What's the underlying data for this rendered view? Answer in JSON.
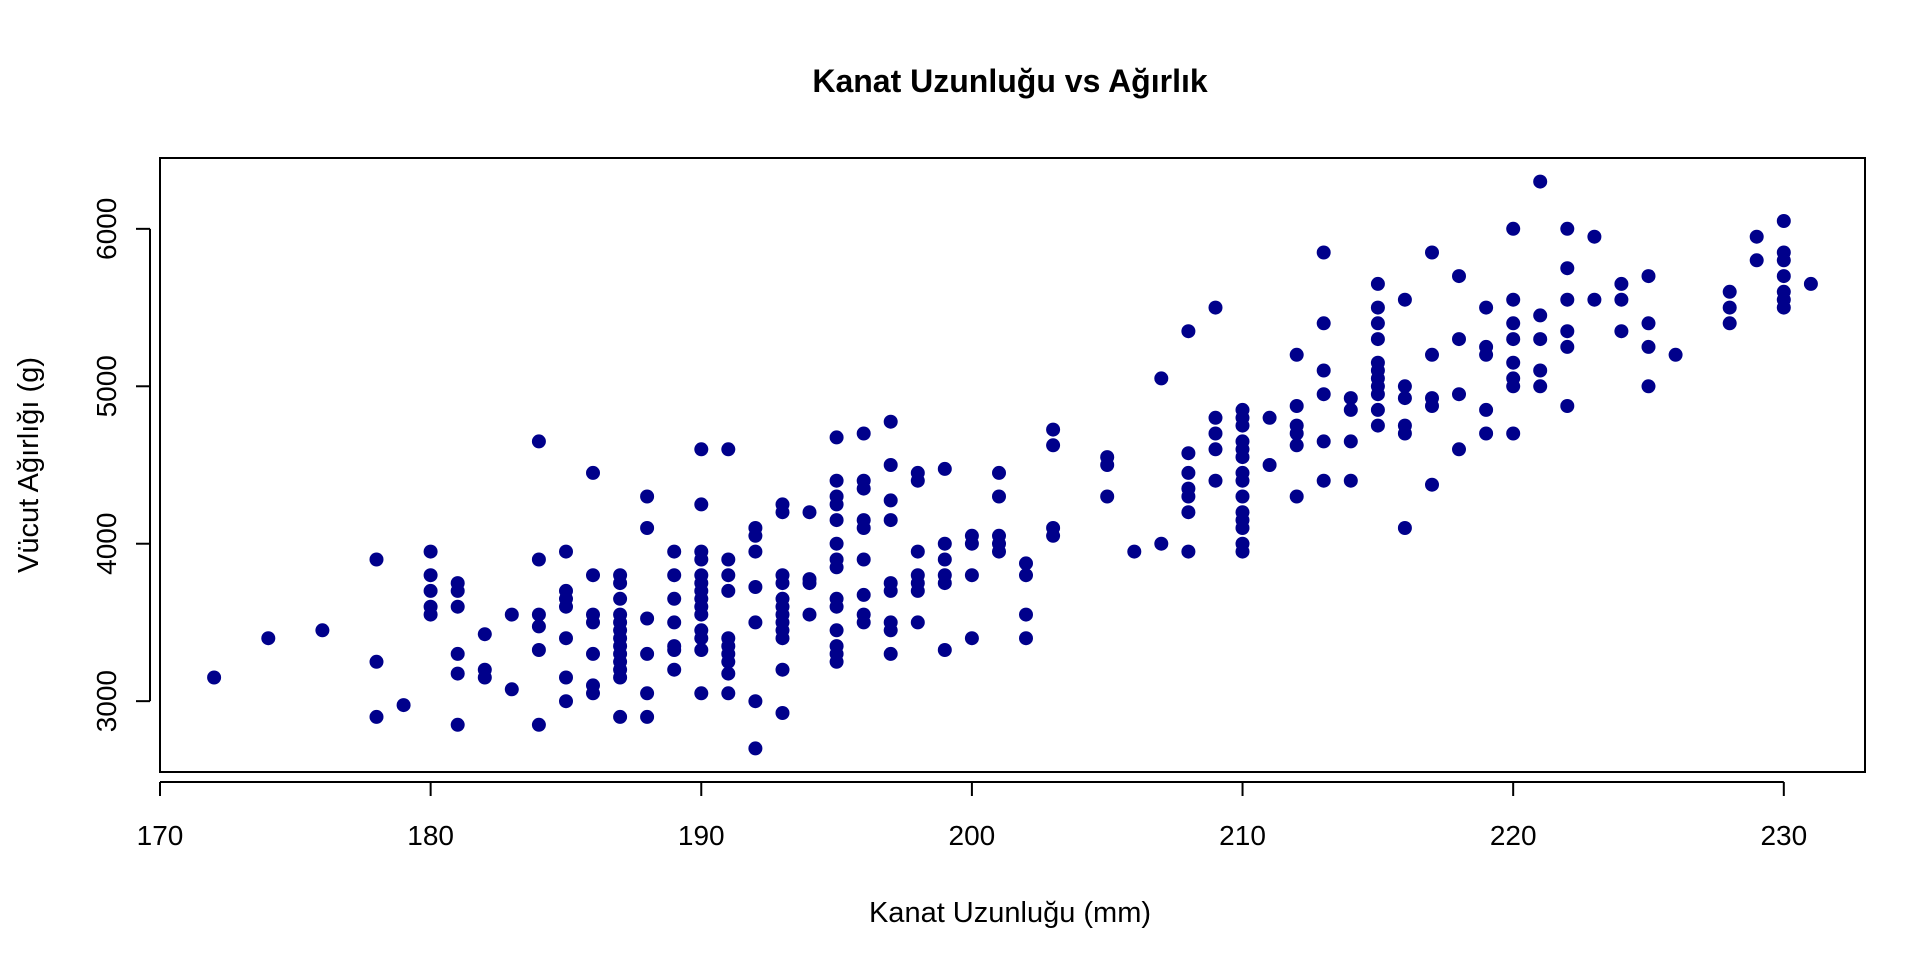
{
  "chart_data": {
    "type": "scatter",
    "title": "Kanat Uzunluğu vs Ağırlık",
    "xlabel": "Kanat Uzunluğu (mm)",
    "ylabel": "Vücut Ağırlığı (g)",
    "xlim": [
      170,
      233
    ],
    "ylim": [
      2550,
      6450
    ],
    "xticks": [
      170,
      180,
      190,
      200,
      210,
      220,
      230
    ],
    "yticks": [
      3000,
      4000,
      5000,
      6000
    ],
    "grid": false,
    "legend": "none",
    "marker_color": "#00008B",
    "points": [
      [
        172,
        3150
      ],
      [
        174,
        3400
      ],
      [
        176,
        3450
      ],
      [
        178,
        3900
      ],
      [
        178,
        3250
      ],
      [
        178,
        2900
      ],
      [
        179,
        2975
      ],
      [
        180,
        3950
      ],
      [
        180,
        3800
      ],
      [
        180,
        3700
      ],
      [
        180,
        3600
      ],
      [
        180,
        3550
      ],
      [
        181,
        3750
      ],
      [
        181,
        3700
      ],
      [
        181,
        3600
      ],
      [
        181,
        3300
      ],
      [
        181,
        3175
      ],
      [
        181,
        2850
      ],
      [
        182,
        3425
      ],
      [
        182,
        3200
      ],
      [
        182,
        3150
      ],
      [
        183,
        3550
      ],
      [
        183,
        3075
      ],
      [
        184,
        4650
      ],
      [
        184,
        3900
      ],
      [
        184,
        3550
      ],
      [
        184,
        3475
      ],
      [
        184,
        3325
      ],
      [
        184,
        2850
      ],
      [
        185,
        3950
      ],
      [
        185,
        3700
      ],
      [
        185,
        3650
      ],
      [
        185,
        3600
      ],
      [
        185,
        3400
      ],
      [
        185,
        3150
      ],
      [
        185,
        3000
      ],
      [
        186,
        4450
      ],
      [
        186,
        3800
      ],
      [
        186,
        3550
      ],
      [
        186,
        3500
      ],
      [
        186,
        3300
      ],
      [
        186,
        3100
      ],
      [
        186,
        3050
      ],
      [
        187,
        3800
      ],
      [
        187,
        3750
      ],
      [
        187,
        3650
      ],
      [
        187,
        3550
      ],
      [
        187,
        3500
      ],
      [
        187,
        3450
      ],
      [
        187,
        3400
      ],
      [
        187,
        3350
      ],
      [
        187,
        3300
      ],
      [
        187,
        3250
      ],
      [
        187,
        3200
      ],
      [
        187,
        3150
      ],
      [
        187,
        2900
      ],
      [
        188,
        4300
      ],
      [
        188,
        4100
      ],
      [
        188,
        3525
      ],
      [
        188,
        3300
      ],
      [
        188,
        3050
      ],
      [
        188,
        2900
      ],
      [
        189,
        3950
      ],
      [
        189,
        3800
      ],
      [
        189,
        3650
      ],
      [
        189,
        3500
      ],
      [
        189,
        3350
      ],
      [
        189,
        3325
      ],
      [
        189,
        3200
      ],
      [
        190,
        4600
      ],
      [
        190,
        4250
      ],
      [
        190,
        3950
      ],
      [
        190,
        3900
      ],
      [
        190,
        3800
      ],
      [
        190,
        3750
      ],
      [
        190,
        3700
      ],
      [
        190,
        3650
      ],
      [
        190,
        3600
      ],
      [
        190,
        3550
      ],
      [
        190,
        3450
      ],
      [
        190,
        3400
      ],
      [
        190,
        3325
      ],
      [
        190,
        3050
      ],
      [
        191,
        4600
      ],
      [
        191,
        3900
      ],
      [
        191,
        3800
      ],
      [
        191,
        3700
      ],
      [
        191,
        3400
      ],
      [
        191,
        3350
      ],
      [
        191,
        3300
      ],
      [
        191,
        3250
      ],
      [
        191,
        3175
      ],
      [
        191,
        3050
      ],
      [
        192,
        4100
      ],
      [
        192,
        4050
      ],
      [
        192,
        3950
      ],
      [
        192,
        3725
      ],
      [
        192,
        3500
      ],
      [
        192,
        3000
      ],
      [
        192,
        2700
      ],
      [
        193,
        4250
      ],
      [
        193,
        4200
      ],
      [
        193,
        3800
      ],
      [
        193,
        3750
      ],
      [
        193,
        3650
      ],
      [
        193,
        3600
      ],
      [
        193,
        3550
      ],
      [
        193,
        3500
      ],
      [
        193,
        3450
      ],
      [
        193,
        3400
      ],
      [
        193,
        3200
      ],
      [
        193,
        2925
      ],
      [
        194,
        4200
      ],
      [
        194,
        3775
      ],
      [
        194,
        3750
      ],
      [
        194,
        3550
      ],
      [
        195,
        4675
      ],
      [
        195,
        4400
      ],
      [
        195,
        4300
      ],
      [
        195,
        4250
      ],
      [
        195,
        4150
      ],
      [
        195,
        4000
      ],
      [
        195,
        3900
      ],
      [
        195,
        3850
      ],
      [
        195,
        3650
      ],
      [
        195,
        3600
      ],
      [
        195,
        3450
      ],
      [
        195,
        3350
      ],
      [
        195,
        3300
      ],
      [
        195,
        3250
      ],
      [
        196,
        4700
      ],
      [
        196,
        4400
      ],
      [
        196,
        4350
      ],
      [
        196,
        4150
      ],
      [
        196,
        4100
      ],
      [
        196,
        3900
      ],
      [
        196,
        3675
      ],
      [
        196,
        3550
      ],
      [
        196,
        3500
      ],
      [
        197,
        4775
      ],
      [
        197,
        4500
      ],
      [
        197,
        4275
      ],
      [
        197,
        4150
      ],
      [
        197,
        3750
      ],
      [
        197,
        3700
      ],
      [
        197,
        3500
      ],
      [
        197,
        3450
      ],
      [
        197,
        3300
      ],
      [
        198,
        4450
      ],
      [
        198,
        4400
      ],
      [
        198,
        3950
      ],
      [
        198,
        3800
      ],
      [
        198,
        3750
      ],
      [
        198,
        3700
      ],
      [
        198,
        3500
      ],
      [
        199,
        4475
      ],
      [
        199,
        4000
      ],
      [
        199,
        3900
      ],
      [
        199,
        3800
      ],
      [
        199,
        3750
      ],
      [
        199,
        3325
      ],
      [
        200,
        4050
      ],
      [
        200,
        4000
      ],
      [
        200,
        3800
      ],
      [
        200,
        3400
      ],
      [
        201,
        4450
      ],
      [
        201,
        4300
      ],
      [
        201,
        4050
      ],
      [
        201,
        4000
      ],
      [
        201,
        3950
      ],
      [
        202,
        3875
      ],
      [
        202,
        3800
      ],
      [
        202,
        3550
      ],
      [
        202,
        3400
      ],
      [
        203,
        4725
      ],
      [
        203,
        4625
      ],
      [
        203,
        4100
      ],
      [
        203,
        4050
      ],
      [
        205,
        4550
      ],
      [
        205,
        4500
      ],
      [
        205,
        4300
      ],
      [
        206,
        3950
      ],
      [
        207,
        5050
      ],
      [
        207,
        4000
      ],
      [
        208,
        5350
      ],
      [
        208,
        4575
      ],
      [
        208,
        4450
      ],
      [
        208,
        4350
      ],
      [
        208,
        4300
      ],
      [
        208,
        4200
      ],
      [
        208,
        3950
      ],
      [
        209,
        5500
      ],
      [
        209,
        4800
      ],
      [
        209,
        4700
      ],
      [
        209,
        4600
      ],
      [
        209,
        4400
      ],
      [
        210,
        4850
      ],
      [
        210,
        4800
      ],
      [
        210,
        4750
      ],
      [
        210,
        4650
      ],
      [
        210,
        4600
      ],
      [
        210,
        4550
      ],
      [
        210,
        4450
      ],
      [
        210,
        4400
      ],
      [
        210,
        4300
      ],
      [
        210,
        4200
      ],
      [
        210,
        4150
      ],
      [
        210,
        4100
      ],
      [
        210,
        4000
      ],
      [
        210,
        3950
      ],
      [
        211,
        4800
      ],
      [
        211,
        4500
      ],
      [
        212,
        5200
      ],
      [
        212,
        4875
      ],
      [
        212,
        4750
      ],
      [
        212,
        4700
      ],
      [
        212,
        4625
      ],
      [
        212,
        4300
      ],
      [
        213,
        5850
      ],
      [
        213,
        5400
      ],
      [
        213,
        5100
      ],
      [
        213,
        4950
      ],
      [
        213,
        4650
      ],
      [
        213,
        4400
      ],
      [
        214,
        4925
      ],
      [
        214,
        4850
      ],
      [
        214,
        4650
      ],
      [
        214,
        4400
      ],
      [
        215,
        5650
      ],
      [
        215,
        5500
      ],
      [
        215,
        5400
      ],
      [
        215,
        5300
      ],
      [
        215,
        5150
      ],
      [
        215,
        5100
      ],
      [
        215,
        5050
      ],
      [
        215,
        5000
      ],
      [
        215,
        4950
      ],
      [
        215,
        4850
      ],
      [
        215,
        4750
      ],
      [
        216,
        5550
      ],
      [
        216,
        5000
      ],
      [
        216,
        4925
      ],
      [
        216,
        4750
      ],
      [
        216,
        4700
      ],
      [
        216,
        4100
      ],
      [
        217,
        5850
      ],
      [
        217,
        5200
      ],
      [
        217,
        4925
      ],
      [
        217,
        4875
      ],
      [
        217,
        4375
      ],
      [
        218,
        5700
      ],
      [
        218,
        5300
      ],
      [
        218,
        4950
      ],
      [
        218,
        4600
      ],
      [
        219,
        5500
      ],
      [
        219,
        5250
      ],
      [
        219,
        5200
      ],
      [
        219,
        4850
      ],
      [
        219,
        4700
      ],
      [
        220,
        6000
      ],
      [
        220,
        5550
      ],
      [
        220,
        5400
      ],
      [
        220,
        5300
      ],
      [
        220,
        5150
      ],
      [
        220,
        5050
      ],
      [
        220,
        5000
      ],
      [
        220,
        4700
      ],
      [
        221,
        6300
      ],
      [
        221,
        5450
      ],
      [
        221,
        5300
      ],
      [
        221,
        5100
      ],
      [
        221,
        5000
      ],
      [
        222,
        6000
      ],
      [
        222,
        5750
      ],
      [
        222,
        5550
      ],
      [
        222,
        5350
      ],
      [
        222,
        5250
      ],
      [
        222,
        4875
      ],
      [
        223,
        5950
      ],
      [
        223,
        5550
      ],
      [
        224,
        5650
      ],
      [
        224,
        5550
      ],
      [
        224,
        5350
      ],
      [
        225,
        5700
      ],
      [
        225,
        5400
      ],
      [
        225,
        5250
      ],
      [
        225,
        5000
      ],
      [
        226,
        5200
      ],
      [
        228,
        5600
      ],
      [
        228,
        5500
      ],
      [
        228,
        5400
      ],
      [
        229,
        5950
      ],
      [
        229,
        5800
      ],
      [
        230,
        6050
      ],
      [
        230,
        5850
      ],
      [
        230,
        5800
      ],
      [
        230,
        5700
      ],
      [
        230,
        5600
      ],
      [
        230,
        5550
      ],
      [
        230,
        5500
      ],
      [
        231,
        5650
      ]
    ]
  }
}
